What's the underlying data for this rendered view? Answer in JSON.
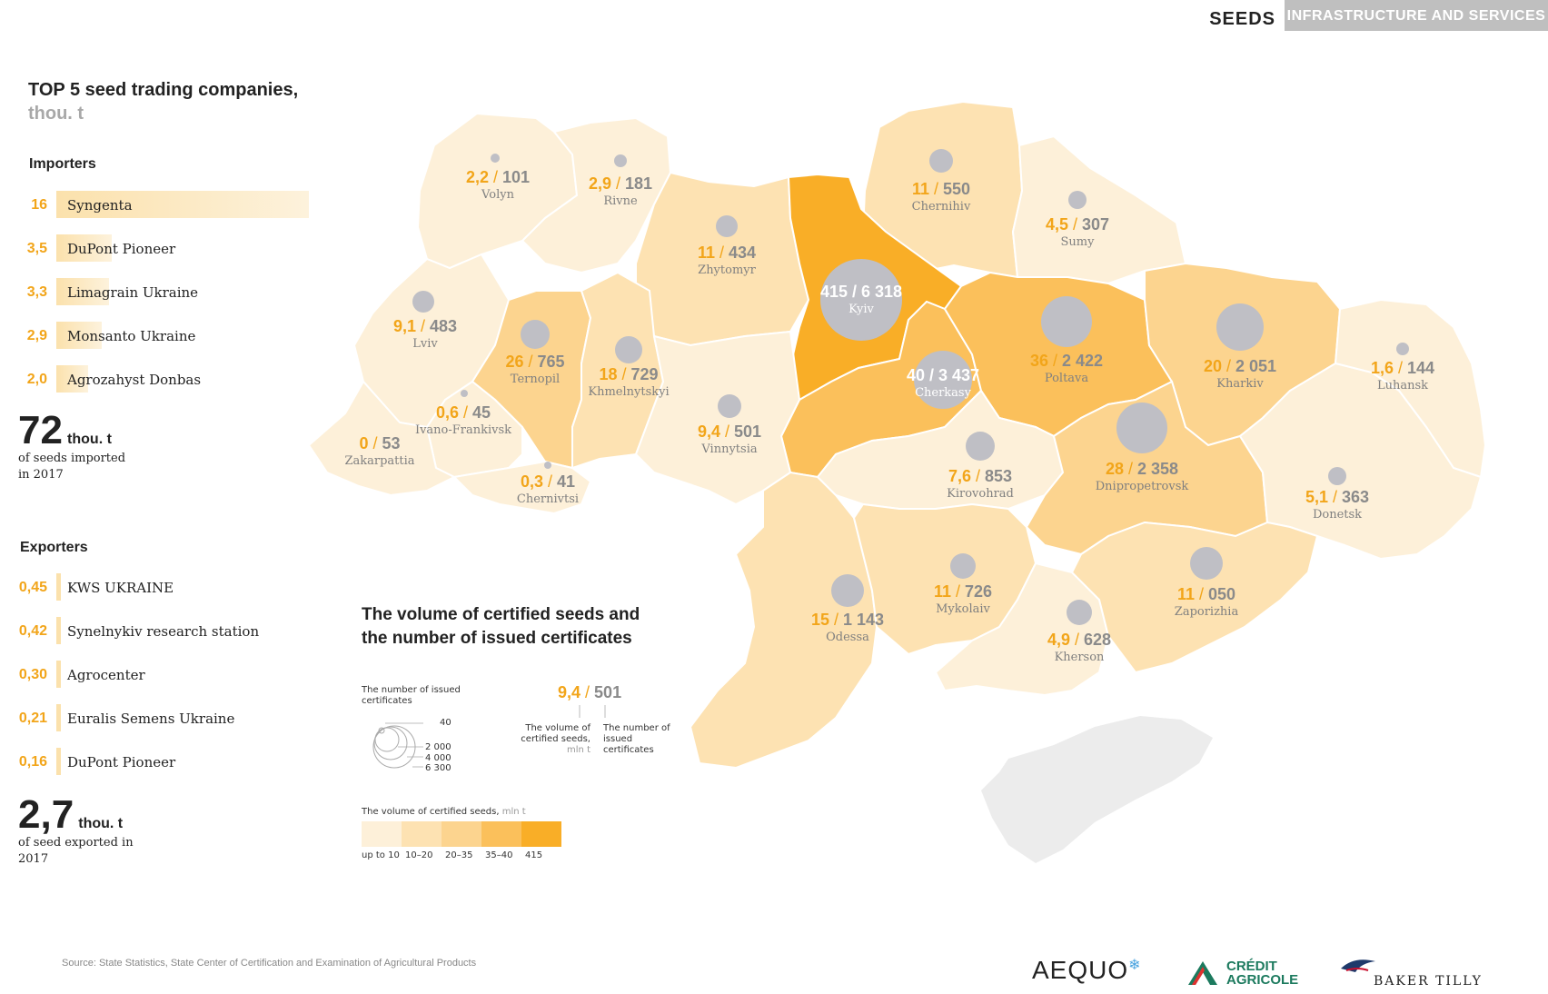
{
  "header": {
    "tab_active": "SEEDS",
    "tab_inactive": "INFRASTRUCTURE AND SERVICES"
  },
  "panel": {
    "title_main": "TOP 5 seed trading companies,",
    "title_unit": "thou. t",
    "importers_heading": "Importers",
    "importers": [
      {
        "value": "16",
        "name": "Syngenta",
        "share": 1.0
      },
      {
        "value": "3,5",
        "name": "DuPont Pioneer",
        "share": 0.22
      },
      {
        "value": "3,3",
        "name": "Limagrain Ukraine",
        "share": 0.21
      },
      {
        "value": "2,9",
        "name": "Monsanto Ukraine",
        "share": 0.18
      },
      {
        "value": "2,0",
        "name": "Agrozahyst Donbas",
        "share": 0.125
      }
    ],
    "imported_total": "72",
    "imported_unit": "thou. t",
    "imported_caption": "of seeds imported in 2017",
    "exporters_heading": "Exporters",
    "exporters": [
      {
        "value": "0,45",
        "name": "KWS UKRAINE"
      },
      {
        "value": "0,42",
        "name": "Synelnykiv research station"
      },
      {
        "value": "0,30",
        "name": "Agrocenter"
      },
      {
        "value": "0,21",
        "name": "Euralis Semens Ukraine"
      },
      {
        "value": "0,16",
        "name": "DuPont Pioneer"
      }
    ],
    "exported_total": "2,7",
    "exported_unit": "thou. t",
    "exported_caption": "of seed exported in 2017"
  },
  "regions": [
    {
      "name": "Volyn",
      "volume": "2,2",
      "certs": "101",
      "class": 1
    },
    {
      "name": "Rivne",
      "volume": "2,9",
      "certs": "181",
      "class": 1
    },
    {
      "name": "Zhytomyr",
      "volume": "11",
      "certs": "434",
      "class": 2
    },
    {
      "name": "Chernihiv",
      "volume": "11",
      "certs": "550",
      "class": 2
    },
    {
      "name": "Sumy",
      "volume": "4,5",
      "certs": "307",
      "class": 1
    },
    {
      "name": "Kyiv",
      "volume": "415",
      "certs": "6 318",
      "class": 5
    },
    {
      "name": "Lviv",
      "volume": "9,1",
      "certs": "483",
      "class": 1
    },
    {
      "name": "Ternopil",
      "volume": "26",
      "certs": "765",
      "class": 3
    },
    {
      "name": "Khmelnytskyi",
      "volume": "18",
      "certs": "729",
      "class": 2
    },
    {
      "name": "Cherkasy",
      "volume": "40",
      "certs": "3 437",
      "class": 4
    },
    {
      "name": "Poltava",
      "volume": "36",
      "certs": "2 422",
      "class": 4
    },
    {
      "name": "Kharkiv",
      "volume": "20",
      "certs": "2 051",
      "class": 3
    },
    {
      "name": "Luhansk",
      "volume": "1,6",
      "certs": "144",
      "class": 1
    },
    {
      "name": "Ivano-Frankivsk",
      "volume": "0,6",
      "certs": "45",
      "class": 1
    },
    {
      "name": "Zakarpattia",
      "volume": "0",
      "certs": "53",
      "class": 1
    },
    {
      "name": "Chernivtsi",
      "volume": "0,3",
      "certs": "41",
      "class": 1
    },
    {
      "name": "Vinnytsia",
      "volume": "9,4",
      "certs": "501",
      "class": 1
    },
    {
      "name": "Kirovohrad",
      "volume": "7,6",
      "certs": "853",
      "class": 1
    },
    {
      "name": "Dnipropetrovsk",
      "volume": "28",
      "certs": "2 358",
      "class": 3
    },
    {
      "name": "Donetsk",
      "volume": "5,1",
      "certs": "363",
      "class": 1
    },
    {
      "name": "Odessa",
      "volume": "15",
      "certs": "1 143",
      "class": 2
    },
    {
      "name": "Mykolaiv",
      "volume": "11",
      "certs": "726",
      "class": 2
    },
    {
      "name": "Kherson",
      "volume": "4,9",
      "certs": "628",
      "class": 1
    },
    {
      "name": "Zaporizhia",
      "volume": "11",
      "certs": "050",
      "class": 2
    }
  ],
  "legend": {
    "title": "The volume of certified seeds and the number of issued certificates",
    "circles_caption": "The number of issued certificates",
    "circle_values": [
      "40",
      "2 000",
      "4 000",
      "6 300"
    ],
    "example_volume": "9,4",
    "example_certs": "501",
    "example_volume_caption": "The volume of certified seeds,",
    "example_volume_unit": "mln t",
    "example_certs_caption": "The number of issued certificates",
    "scale_caption": "The volume of certified seeds,",
    "scale_unit": "mln t",
    "scale_labels": [
      "up to 10",
      "10–20",
      "20–35",
      "35–40",
      "415"
    ],
    "scale_colors": [
      "#fdf0d9",
      "#fde2b2",
      "#fcd48f",
      "#fbc05b",
      "#f9ae27"
    ]
  },
  "colors": {
    "accent": "#f2a51a",
    "dot": "#bfbfc5",
    "crimea": "#ececec"
  },
  "source": "Source: State Statistics, State Center of Certification and Examination of Agricultural Products",
  "logos": {
    "aequo": "AEQUO",
    "credit1": "CRÉDIT",
    "credit2": "AGRICOLE",
    "baker": "BAKER TILLY"
  }
}
